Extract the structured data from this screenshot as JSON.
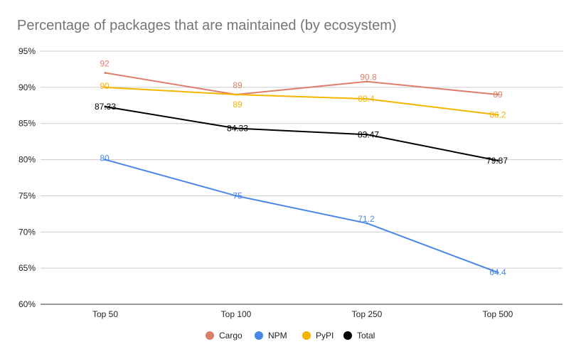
{
  "chart_data": {
    "type": "line",
    "title": "Percentage of packages that are maintained (by ecosystem)",
    "xlabel": "",
    "ylabel": "",
    "categories": [
      "Top 50",
      "Top 100",
      "Top 250",
      "Top 500"
    ],
    "ylim": [
      60,
      95
    ],
    "yticks": [
      "60%",
      "65%",
      "70%",
      "75%",
      "80%",
      "85%",
      "90%",
      "95%"
    ],
    "grid": true,
    "legend_position": "bottom",
    "series": [
      {
        "name": "Cargo",
        "color": "#dd7e6b",
        "values": [
          92,
          89,
          90.8,
          89
        ],
        "labels": [
          "92",
          "89",
          "90.8",
          "89"
        ]
      },
      {
        "name": "NPM",
        "color": "#4a86e8",
        "values": [
          80,
          75,
          71.2,
          64.4
        ],
        "labels": [
          "80",
          "75",
          "71.2",
          "64.4"
        ]
      },
      {
        "name": "PyPI",
        "color": "#f4b400",
        "values": [
          90,
          89,
          88.4,
          86.2
        ],
        "labels": [
          "90",
          "89",
          "88.4",
          "86.2"
        ]
      },
      {
        "name": "Total",
        "color": "#000000",
        "values": [
          87.33,
          84.33,
          83.47,
          79.87
        ],
        "labels": [
          "87.33",
          "84.33",
          "83.47",
          "79.87"
        ]
      }
    ]
  }
}
